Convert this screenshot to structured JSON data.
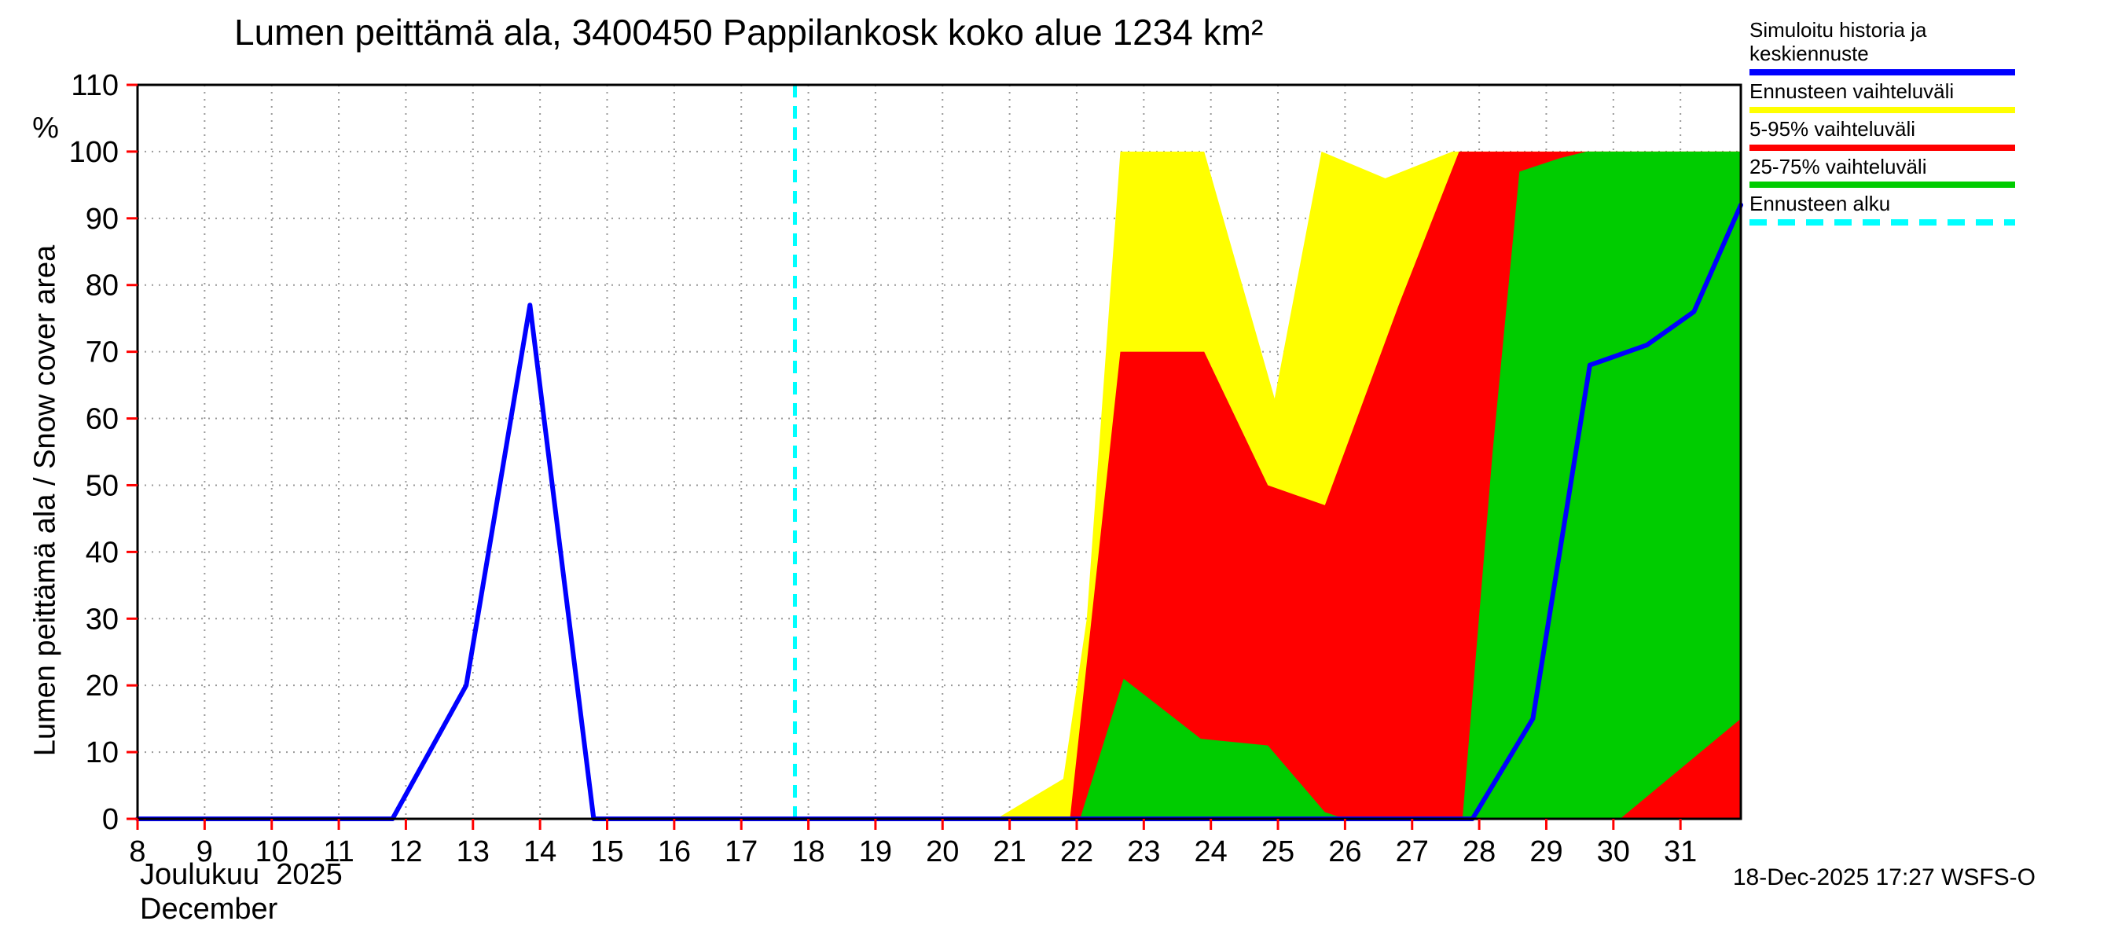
{
  "title": "Lumen peittämä ala, 3400450 Pappilankosk koko alue 1234 km²",
  "y_axis": {
    "label": "Lumen peittämä ala / Snow cover area",
    "unit": "%"
  },
  "x_axis": {
    "label_fi": "Joulukuu  2025",
    "label_en": "December"
  },
  "footer": "18-Dec-2025 17:27 WSFS-O",
  "legend": [
    {
      "label": "Simuloitu historia ja keskiennuste",
      "color": "#0000ff",
      "style": "solid"
    },
    {
      "label": "Ennusteen vaihteluväli",
      "color": "#ffff00",
      "style": "solid"
    },
    {
      "label": "5-95% vaihteluväli",
      "color": "#ff0000",
      "style": "solid"
    },
    {
      "label": "25-75% vaihteluväli",
      "color": "#00cc00",
      "style": "solid"
    },
    {
      "label": "Ennusteen alku",
      "color": "#00ffff",
      "style": "dashed"
    }
  ],
  "chart_data": {
    "type": "area",
    "title": "Lumen peittämä ala, 3400450 Pappilankosk koko alue 1234 km²",
    "xlabel": "Joulukuu 2025 / December",
    "ylabel": "Lumen peittämä ala / Snow cover area %",
    "xlim": [
      8,
      31.9
    ],
    "ylim": [
      0,
      110
    ],
    "xticks": [
      8,
      9,
      10,
      11,
      12,
      13,
      14,
      15,
      16,
      17,
      18,
      19,
      20,
      21,
      22,
      23,
      24,
      25,
      26,
      27,
      28,
      29,
      30,
      31
    ],
    "yticks": [
      0,
      10,
      20,
      30,
      40,
      50,
      60,
      70,
      80,
      90,
      100,
      110
    ],
    "grid": true,
    "legend_position": "top-right",
    "forecast_start_x": 17.8,
    "colors": {
      "grid": "#999999",
      "tick": "#ff0000",
      "frame": "#000000",
      "forecast": "#00ffff"
    },
    "bands": [
      {
        "name": "ennusteen-vaihteluvali",
        "label": "Ennusteen vaihteluväli",
        "color": "#ffff00",
        "top": [
          [
            20.8,
            0
          ],
          [
            21.8,
            6
          ],
          [
            22.15,
            30
          ],
          [
            22.65,
            100
          ],
          [
            23.9,
            100
          ],
          [
            24.95,
            63
          ],
          [
            25.65,
            100
          ],
          [
            26.6,
            96
          ],
          [
            27.6,
            100
          ],
          [
            31.9,
            100
          ]
        ],
        "bottom": [
          [
            20.8,
            0
          ],
          [
            31.9,
            0
          ]
        ]
      },
      {
        "name": "vaihteluvali-5-95",
        "label": "5-95% vaihteluväli",
        "color": "#ff0000",
        "top": [
          [
            21.9,
            0
          ],
          [
            22.65,
            70
          ],
          [
            23.9,
            70
          ],
          [
            24.85,
            50
          ],
          [
            25.7,
            47
          ],
          [
            26.8,
            77
          ],
          [
            27.7,
            100
          ],
          [
            31.9,
            100
          ]
        ],
        "bottom": [
          [
            21.9,
            0
          ],
          [
            31.9,
            0
          ]
        ]
      },
      {
        "name": "vaihteluvali-25-75",
        "label": "25-75% vaihteluväli",
        "color": "#00cc00",
        "top": [
          [
            22.05,
            0
          ],
          [
            22.7,
            21
          ],
          [
            23.85,
            12
          ],
          [
            24.85,
            11
          ],
          [
            25.7,
            1
          ],
          [
            26.0,
            0
          ],
          [
            27.75,
            0
          ],
          [
            28.2,
            55
          ],
          [
            28.6,
            97
          ],
          [
            29.2,
            99
          ],
          [
            29.6,
            100
          ],
          [
            31.9,
            100
          ]
        ],
        "bottom": [
          [
            22.05,
            0
          ],
          [
            30.1,
            0
          ],
          [
            31.9,
            15
          ]
        ]
      }
    ],
    "line": {
      "name": "simuloitu-historia-ja-keskiennuste",
      "label": "Simuloitu historia ja keskiennuste",
      "color": "#0000ff",
      "width": 6,
      "points": [
        [
          8,
          0
        ],
        [
          11.8,
          0
        ],
        [
          12.9,
          20
        ],
        [
          13.85,
          77
        ],
        [
          14.8,
          0
        ],
        [
          27.9,
          0
        ],
        [
          28.8,
          15
        ],
        [
          29.65,
          68
        ],
        [
          30.5,
          71
        ],
        [
          31.2,
          76
        ],
        [
          31.9,
          92
        ]
      ]
    }
  }
}
